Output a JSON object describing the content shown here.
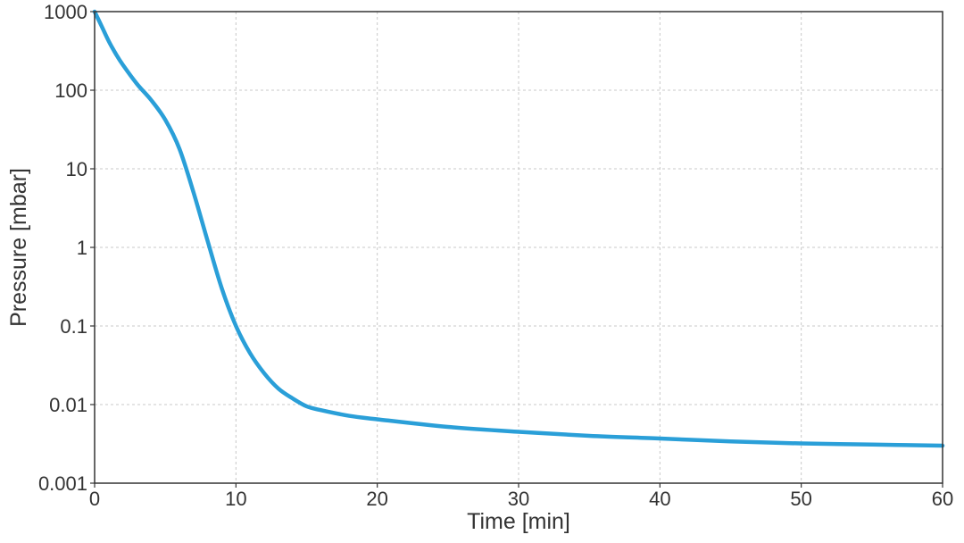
{
  "chart_data": {
    "type": "line",
    "title": "",
    "xlabel": "Time [min]",
    "ylabel": "Pressure [mbar]",
    "xlim": [
      0,
      60
    ],
    "ylim": [
      0.001,
      1000
    ],
    "yscale": "log",
    "grid": true,
    "x_ticks": [
      0,
      10,
      20,
      30,
      40,
      50,
      60
    ],
    "x_tick_labels": [
      "0",
      "10",
      "20",
      "30",
      "40",
      "50",
      "60"
    ],
    "y_ticks": [
      0.001,
      0.01,
      0.1,
      1,
      10,
      100,
      1000
    ],
    "y_tick_labels": [
      "0.001",
      "0.01",
      "0.1",
      "1",
      "10",
      "100",
      "1000"
    ],
    "line_color": "#2a9fd8",
    "series": [
      {
        "x": [
          0,
          0.5,
          1,
          1.5,
          2,
          3,
          4,
          5,
          6,
          7,
          8,
          9,
          10,
          11,
          12,
          13,
          14,
          15,
          16,
          18,
          20,
          25,
          30,
          35,
          40,
          45,
          50,
          55,
          60
        ],
        "y": [
          1000,
          650,
          420,
          290,
          210,
          120,
          75,
          42,
          18,
          5,
          1.2,
          0.3,
          0.1,
          0.045,
          0.025,
          0.016,
          0.012,
          0.0095,
          0.0085,
          0.0072,
          0.0065,
          0.0052,
          0.0045,
          0.004,
          0.0037,
          0.0034,
          0.0032,
          0.0031,
          0.003
        ]
      }
    ]
  }
}
